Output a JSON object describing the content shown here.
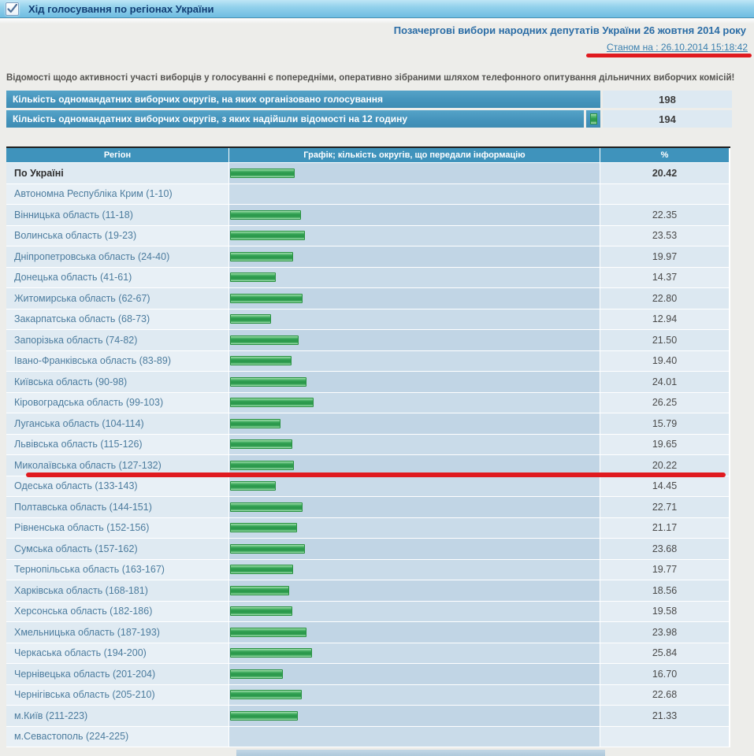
{
  "window": {
    "title": "Хід голосування по регіонах України"
  },
  "header": {
    "subtitle": "Позачергові вибори народних депутатів України 26 жовтня 2014 року",
    "timestamp": "Станом на : 26.10.2014 15:18:42",
    "notice": "Відомості щодо активності участі виборців у голосуванні є попередніми, оперативно зібраними шляхом телефонного опитування дільничних виборчих комісій!"
  },
  "summary_rows": [
    {
      "label": "Кількість одномандатних виборчих округів, на яких організовано голосування",
      "value": "198",
      "indicator": false
    },
    {
      "label": "Кількість одномандатних виборчих округів, з яких надійшли відомості на 12 годину",
      "value": "194",
      "indicator": true
    }
  ],
  "table": {
    "columns": [
      "Регіон",
      "Графік; кількість округів, що передали інформацію",
      "%"
    ],
    "rows": [
      {
        "region": "По Україні",
        "value": "20.42",
        "bold": true
      },
      {
        "region": "Автономна Республіка Крим (1-10)",
        "value": ""
      },
      {
        "region": "Вінницька область (11-18)",
        "value": "22.35"
      },
      {
        "region": "Волинська область (19-23)",
        "value": "23.53"
      },
      {
        "region": "Дніпропетровська область (24-40)",
        "value": "19.97"
      },
      {
        "region": "Донецька область (41-61)",
        "value": "14.37"
      },
      {
        "region": "Житомирська область (62-67)",
        "value": "22.80"
      },
      {
        "region": "Закарпатська область (68-73)",
        "value": "12.94"
      },
      {
        "region": "Запорізька область (74-82)",
        "value": "21.50"
      },
      {
        "region": "Івано-Франківська область (83-89)",
        "value": "19.40"
      },
      {
        "region": "Київська область (90-98)",
        "value": "24.01"
      },
      {
        "region": "Кіровоградська область (99-103)",
        "value": "26.25"
      },
      {
        "region": "Луганська область (104-114)",
        "value": "15.79"
      },
      {
        "region": "Львівська область (115-126)",
        "value": "19.65"
      },
      {
        "region": "Миколаївська область (127-132)",
        "value": "20.22",
        "annotated": true
      },
      {
        "region": "Одеська область (133-143)",
        "value": "14.45"
      },
      {
        "region": "Полтавська область (144-151)",
        "value": "22.71"
      },
      {
        "region": "Рівненська область (152-156)",
        "value": "21.17"
      },
      {
        "region": "Сумська область (157-162)",
        "value": "23.68"
      },
      {
        "region": "Тернопільська область (163-167)",
        "value": "19.77"
      },
      {
        "region": "Харківська область (168-181)",
        "value": "18.56"
      },
      {
        "region": "Херсонська область (182-186)",
        "value": "19.58"
      },
      {
        "region": "Хмельницька область (187-193)",
        "value": "23.98"
      },
      {
        "region": "Черкаська область (194-200)",
        "value": "25.84"
      },
      {
        "region": "Чернівецька область (201-204)",
        "value": "16.70"
      },
      {
        "region": "Чернігівська область (205-210)",
        "value": "22.68"
      },
      {
        "region": "м.Київ (211-223)",
        "value": "21.33"
      },
      {
        "region": "м.Севастополь (224-225)",
        "value": ""
      }
    ]
  },
  "colors": {
    "bar_green": "#2f9e50",
    "header_blue": "#3f93bc",
    "summary_blue": "#4594bc",
    "annotation_red": "#e01a1f",
    "link_blue": "#4c7c9e"
  }
}
